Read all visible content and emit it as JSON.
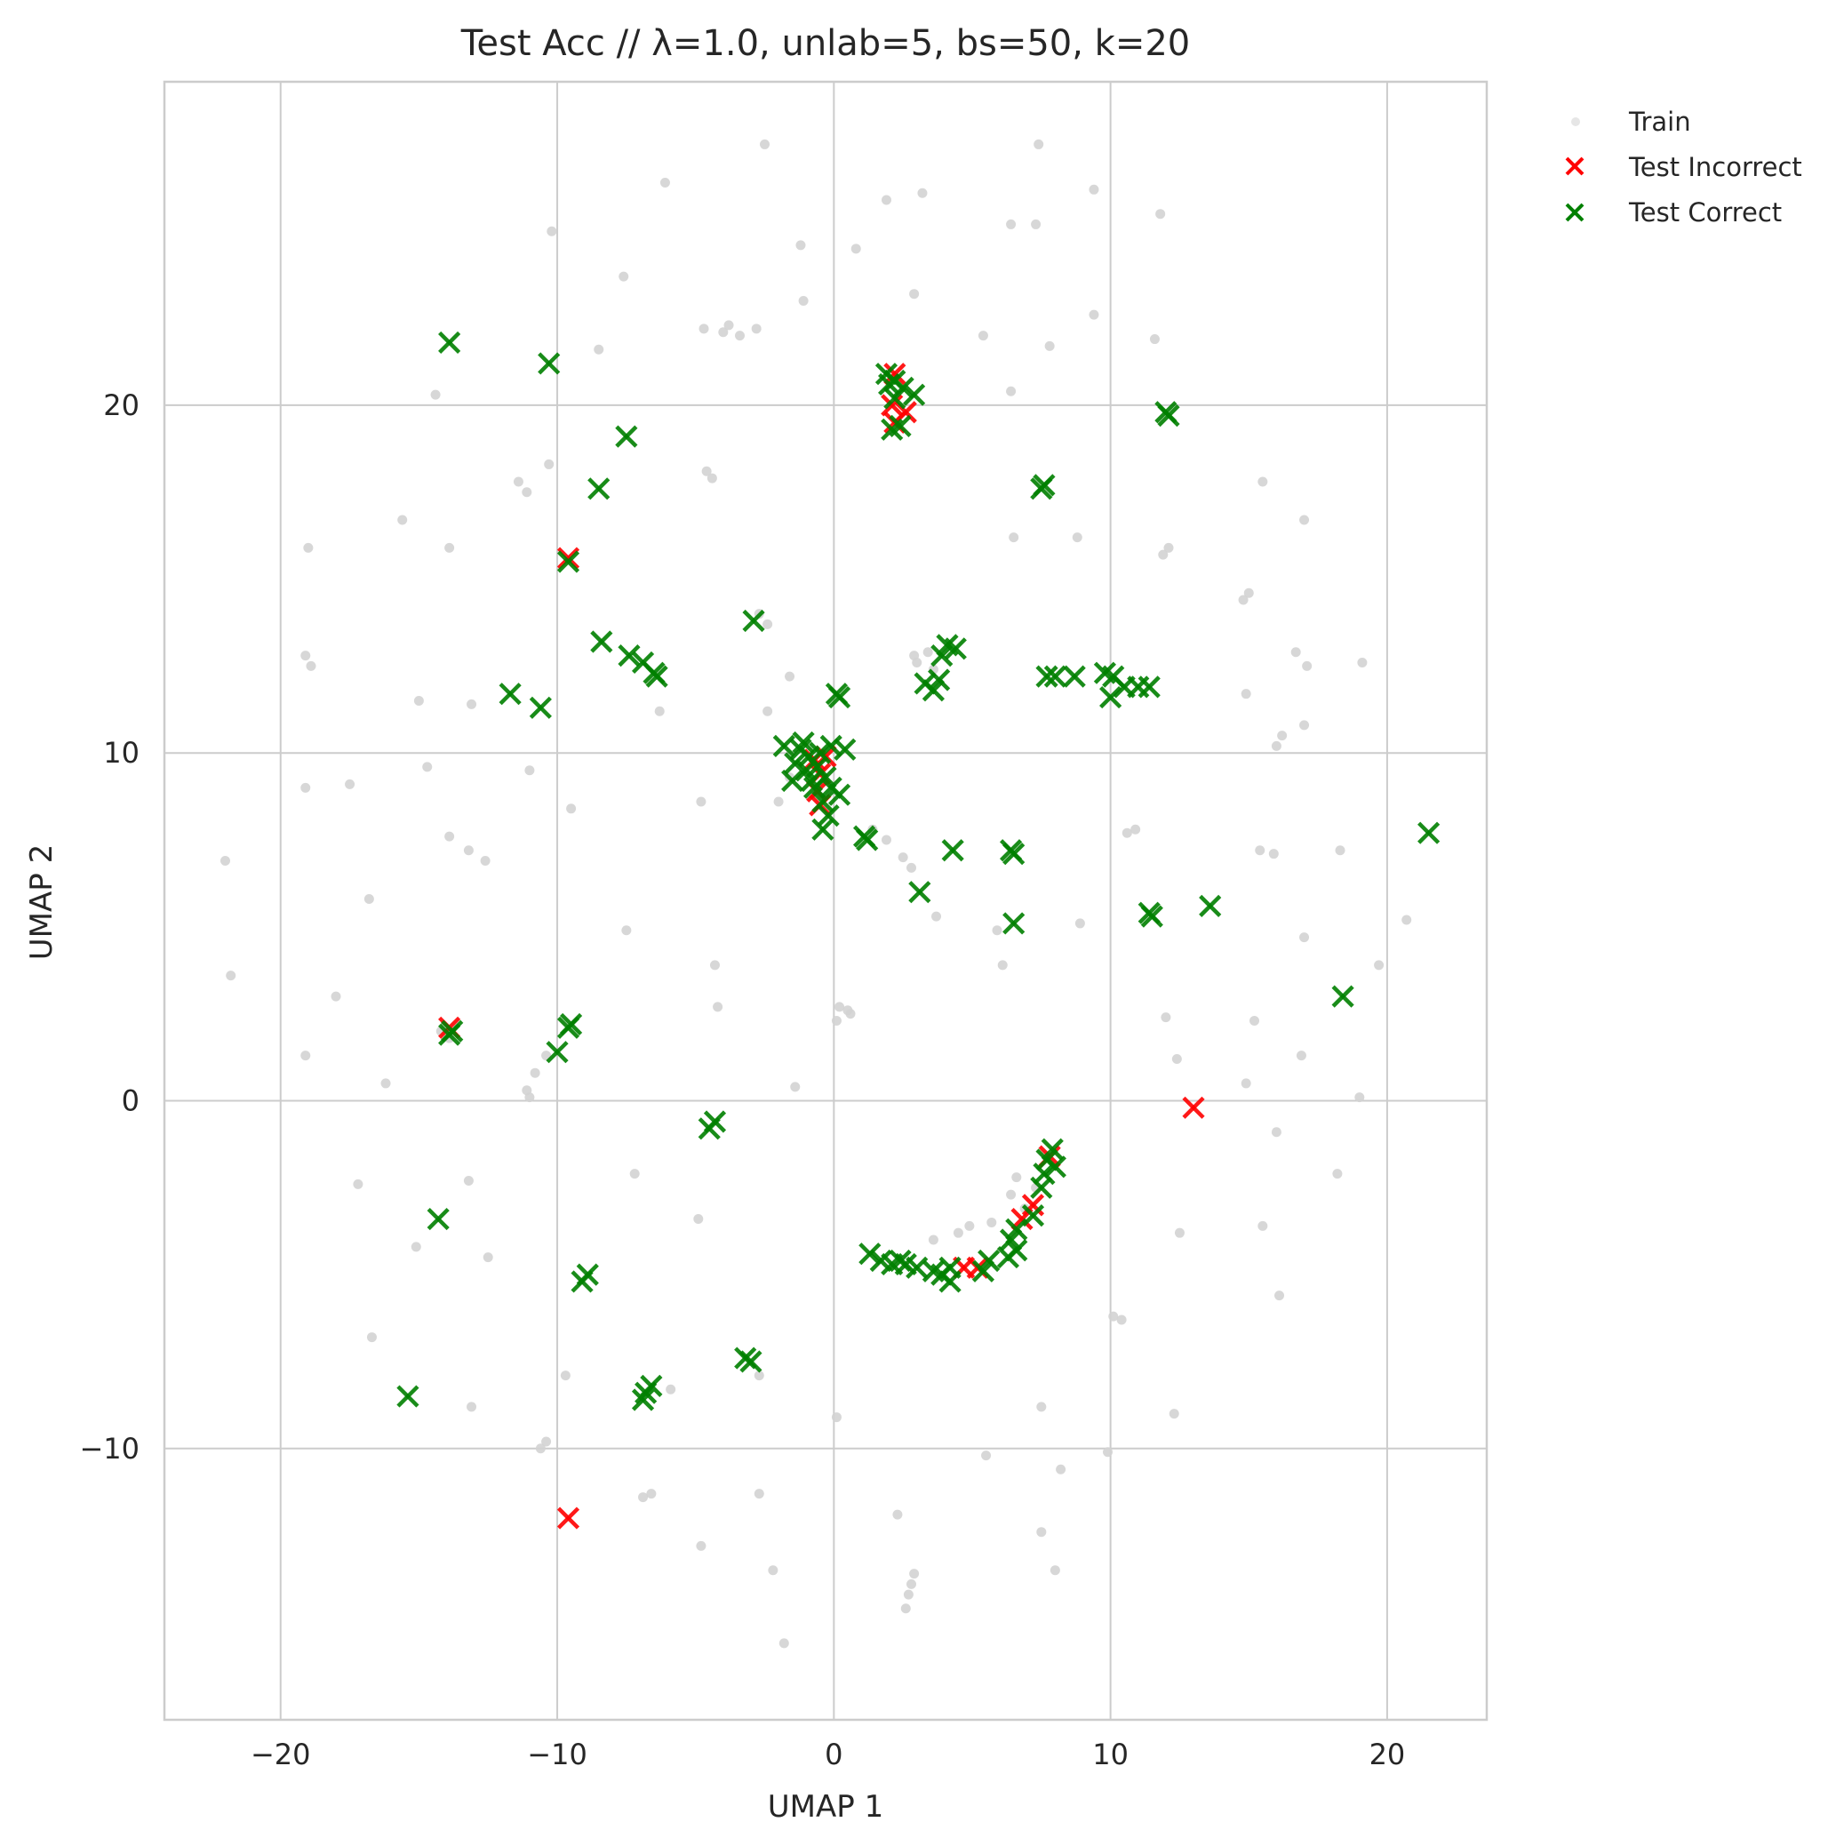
{
  "chart_data": {
    "type": "scatter",
    "title": "Test Acc // λ=1.0, unlab=5, bs=50, k=20",
    "xlabel": "UMAP 1",
    "ylabel": "UMAP 2",
    "xlim": [
      -24.2,
      23.6
    ],
    "ylim": [
      -17.8,
      29.3
    ],
    "xticks": [
      -20,
      -10,
      0,
      10,
      20
    ],
    "yticks": [
      -10,
      0,
      10,
      20
    ],
    "xtick_labels": [
      "−20",
      "−10",
      "0",
      "10",
      "20"
    ],
    "ytick_labels": [
      "−10",
      "0",
      "10",
      "20"
    ],
    "grid": true,
    "legend_position": "outside-top-right",
    "colors": {
      "train": "#d3d3d3",
      "incorrect": "#ff0000",
      "correct": "#008000",
      "grid": "#cccccc",
      "axes": "#cccccc"
    },
    "series": [
      {
        "name": "Train",
        "marker": "dot",
        "points": [
          [
            -2.5,
            27.5
          ],
          [
            -6.1,
            26.4
          ],
          [
            1.9,
            25.9
          ],
          [
            3.2,
            26.1
          ],
          [
            7.4,
            27.5
          ],
          [
            9.4,
            26.2
          ],
          [
            11.8,
            25.5
          ],
          [
            7.3,
            25.2
          ],
          [
            -10.2,
            25.0
          ],
          [
            -1.2,
            24.6
          ],
          [
            0.8,
            24.5
          ],
          [
            6.4,
            25.2
          ],
          [
            -7.6,
            23.7
          ],
          [
            2.9,
            23.2
          ],
          [
            -1.1,
            23.0
          ],
          [
            9.4,
            22.6
          ],
          [
            -4.7,
            22.2
          ],
          [
            -4.0,
            22.1
          ],
          [
            -3.4,
            22.0
          ],
          [
            -2.8,
            22.2
          ],
          [
            -3.8,
            22.3
          ],
          [
            5.4,
            22.0
          ],
          [
            7.8,
            21.7
          ],
          [
            11.6,
            21.9
          ],
          [
            -8.5,
            21.6
          ],
          [
            -14.4,
            20.3
          ],
          [
            6.4,
            20.4
          ],
          [
            -10.3,
            18.3
          ],
          [
            -11.4,
            17.8
          ],
          [
            -11.1,
            17.5
          ],
          [
            -4.6,
            18.1
          ],
          [
            -4.4,
            17.9
          ],
          [
            15.5,
            17.8
          ],
          [
            -15.6,
            16.7
          ],
          [
            17.0,
            16.7
          ],
          [
            -19.0,
            15.9
          ],
          [
            -13.9,
            15.9
          ],
          [
            6.5,
            16.2
          ],
          [
            8.8,
            16.2
          ],
          [
            12.1,
            15.9
          ],
          [
            11.9,
            15.7
          ],
          [
            15.0,
            14.6
          ],
          [
            14.8,
            14.4
          ],
          [
            -2.7,
            14.0
          ],
          [
            -2.4,
            13.7
          ],
          [
            2.9,
            12.8
          ],
          [
            3.4,
            12.9
          ],
          [
            3.0,
            12.6
          ],
          [
            3.6,
            12.4
          ],
          [
            16.7,
            12.9
          ],
          [
            17.1,
            12.5
          ],
          [
            19.1,
            12.6
          ],
          [
            -19.1,
            12.8
          ],
          [
            -18.9,
            12.5
          ],
          [
            -1.6,
            12.2
          ],
          [
            -15.0,
            11.5
          ],
          [
            -13.1,
            11.4
          ],
          [
            -6.3,
            11.2
          ],
          [
            -2.4,
            11.2
          ],
          [
            14.9,
            11.7
          ],
          [
            16.0,
            10.2
          ],
          [
            16.2,
            10.5
          ],
          [
            17.0,
            10.8
          ],
          [
            -0.6,
            9.6
          ],
          [
            -1.6,
            9.3
          ],
          [
            -2.0,
            8.6
          ],
          [
            -4.8,
            8.6
          ],
          [
            -9.5,
            8.4
          ],
          [
            -19.1,
            9.0
          ],
          [
            -17.5,
            9.1
          ],
          [
            -14.7,
            9.6
          ],
          [
            -11.0,
            9.5
          ],
          [
            -13.9,
            7.6
          ],
          [
            -13.2,
            7.2
          ],
          [
            -12.6,
            6.9
          ],
          [
            -22.0,
            6.9
          ],
          [
            1.4,
            7.8
          ],
          [
            1.9,
            7.5
          ],
          [
            2.5,
            7.0
          ],
          [
            2.8,
            6.7
          ],
          [
            10.6,
            7.7
          ],
          [
            10.9,
            7.8
          ],
          [
            15.4,
            7.2
          ],
          [
            15.9,
            7.1
          ],
          [
            18.3,
            7.2
          ],
          [
            -16.8,
            5.8
          ],
          [
            -7.5,
            4.9
          ],
          [
            3.7,
            5.3
          ],
          [
            5.9,
            4.9
          ],
          [
            8.9,
            5.1
          ],
          [
            17.0,
            4.7
          ],
          [
            20.7,
            5.2
          ],
          [
            -21.8,
            3.6
          ],
          [
            6.1,
            3.9
          ],
          [
            -4.3,
            3.9
          ],
          [
            -18.0,
            3.0
          ],
          [
            -4.2,
            2.7
          ],
          [
            0.2,
            2.7
          ],
          [
            0.6,
            2.5
          ],
          [
            0.1,
            2.3
          ],
          [
            0.5,
            2.6
          ],
          [
            19.7,
            3.9
          ],
          [
            12.0,
            2.4
          ],
          [
            15.2,
            2.3
          ],
          [
            -14.2,
            2.0
          ],
          [
            -13.9,
            1.8
          ],
          [
            -10.4,
            1.3
          ],
          [
            -10.8,
            0.8
          ],
          [
            -11.1,
            0.3
          ],
          [
            -11.0,
            0.1
          ],
          [
            -16.2,
            0.5
          ],
          [
            -19.1,
            1.3
          ],
          [
            -1.4,
            0.4
          ],
          [
            12.4,
            1.2
          ],
          [
            14.9,
            0.5
          ],
          [
            16.9,
            1.3
          ],
          [
            19.0,
            0.1
          ],
          [
            -17.2,
            -2.4
          ],
          [
            -13.2,
            -2.3
          ],
          [
            -7.2,
            -2.1
          ],
          [
            6.4,
            -2.7
          ],
          [
            6.9,
            -3.1
          ],
          [
            5.7,
            -3.5
          ],
          [
            4.5,
            -3.8
          ],
          [
            3.6,
            -4.0
          ],
          [
            4.9,
            -3.6
          ],
          [
            12.5,
            -3.8
          ],
          [
            15.5,
            -3.6
          ],
          [
            16.0,
            -0.9
          ],
          [
            18.2,
            -2.1
          ],
          [
            -15.1,
            -4.2
          ],
          [
            -12.5,
            -4.5
          ],
          [
            -4.9,
            -3.4
          ],
          [
            -16.7,
            -6.8
          ],
          [
            -9.7,
            -7.9
          ],
          [
            -5.9,
            -8.3
          ],
          [
            -2.7,
            -7.9
          ],
          [
            -13.1,
            -8.8
          ],
          [
            -10.6,
            -10.0
          ],
          [
            -10.4,
            -9.8
          ],
          [
            0.1,
            -9.1
          ],
          [
            5.5,
            -10.2
          ],
          [
            7.5,
            -8.8
          ],
          [
            8.2,
            -10.6
          ],
          [
            9.9,
            -10.1
          ],
          [
            10.1,
            -6.2
          ],
          [
            10.4,
            -6.3
          ],
          [
            12.3,
            -9.0
          ],
          [
            16.1,
            -5.6
          ],
          [
            -6.9,
            -11.4
          ],
          [
            -6.6,
            -11.3
          ],
          [
            -2.7,
            -11.3
          ],
          [
            -4.8,
            -12.8
          ],
          [
            -2.2,
            -13.5
          ],
          [
            7.5,
            -12.4
          ],
          [
            8.0,
            -13.5
          ],
          [
            2.6,
            -14.6
          ],
          [
            2.7,
            -14.2
          ],
          [
            2.8,
            -13.9
          ],
          [
            2.9,
            -13.6
          ],
          [
            -1.8,
            -15.6
          ],
          [
            2.3,
            -11.9
          ],
          [
            6.6,
            -2.2
          ],
          [
            7.3,
            -2.5
          ]
        ]
      },
      {
        "name": "Test Incorrect",
        "marker": "x",
        "points": [
          [
            2.2,
            20.9
          ],
          [
            2.1,
            20.0
          ],
          [
            2.6,
            19.8
          ],
          [
            2.2,
            19.5
          ],
          [
            -9.6,
            15.6
          ],
          [
            -0.7,
            9.8
          ],
          [
            -0.5,
            9.4
          ],
          [
            -0.3,
            9.9
          ],
          [
            -0.6,
            8.9
          ],
          [
            -0.5,
            8.5
          ],
          [
            -13.9,
            2.1
          ],
          [
            13.0,
            -0.2
          ],
          [
            7.8,
            -1.6
          ],
          [
            7.2,
            -3.0
          ],
          [
            6.8,
            -3.4
          ],
          [
            5.2,
            -4.8
          ],
          [
            4.7,
            -4.8
          ],
          [
            -9.6,
            -12.0
          ]
        ]
      },
      {
        "name": "Test Correct",
        "marker": "x",
        "points": [
          [
            -13.9,
            21.8
          ],
          [
            -10.3,
            21.2
          ],
          [
            -7.5,
            19.1
          ],
          [
            -8.5,
            17.6
          ],
          [
            -9.6,
            15.5
          ],
          [
            1.9,
            20.9
          ],
          [
            2.0,
            20.6
          ],
          [
            2.2,
            20.7
          ],
          [
            2.5,
            20.5
          ],
          [
            2.9,
            20.3
          ],
          [
            2.1,
            19.3
          ],
          [
            2.4,
            19.4
          ],
          [
            2.2,
            20.2
          ],
          [
            12.1,
            19.7
          ],
          [
            12.0,
            19.8
          ],
          [
            7.5,
            17.6
          ],
          [
            7.6,
            17.7
          ],
          [
            -2.9,
            13.8
          ],
          [
            -8.4,
            13.2
          ],
          [
            -7.4,
            12.8
          ],
          [
            -6.9,
            12.6
          ],
          [
            -6.4,
            12.2
          ],
          [
            -6.5,
            12.3
          ],
          [
            -11.7,
            11.7
          ],
          [
            -10.6,
            11.3
          ],
          [
            0.1,
            11.7
          ],
          [
            0.2,
            11.6
          ],
          [
            3.3,
            12.0
          ],
          [
            3.9,
            12.8
          ],
          [
            4.1,
            13.1
          ],
          [
            4.4,
            13.0
          ],
          [
            3.6,
            11.8
          ],
          [
            3.8,
            12.1
          ],
          [
            7.7,
            12.2
          ],
          [
            8.0,
            12.2
          ],
          [
            8.7,
            12.2
          ],
          [
            9.8,
            12.3
          ],
          [
            10.1,
            12.2
          ],
          [
            10.5,
            11.9
          ],
          [
            11.0,
            11.9
          ],
          [
            11.4,
            11.9
          ],
          [
            10.0,
            11.6
          ],
          [
            -1.8,
            10.2
          ],
          [
            -1.2,
            10.1
          ],
          [
            -0.9,
            9.9
          ],
          [
            -1.4,
            9.7
          ],
          [
            -1.0,
            9.5
          ],
          [
            -0.6,
            9.6
          ],
          [
            -0.3,
            9.3
          ],
          [
            -0.7,
            9.0
          ],
          [
            -0.4,
            8.6
          ],
          [
            -0.2,
            8.2
          ],
          [
            -0.4,
            7.8
          ],
          [
            0.2,
            8.8
          ],
          [
            0.4,
            10.1
          ],
          [
            -0.1,
            10.2
          ],
          [
            -1.5,
            9.2
          ],
          [
            -1.1,
            10.3
          ],
          [
            -0.5,
            10.0
          ],
          [
            -0.8,
            9.2
          ],
          [
            -0.1,
            9.0
          ],
          [
            1.1,
            7.6
          ],
          [
            1.2,
            7.5
          ],
          [
            4.3,
            7.2
          ],
          [
            6.4,
            7.2
          ],
          [
            6.5,
            7.1
          ],
          [
            3.1,
            6.0
          ],
          [
            6.5,
            5.1
          ],
          [
            11.4,
            5.4
          ],
          [
            11.5,
            5.3
          ],
          [
            13.6,
            5.6
          ],
          [
            21.5,
            7.7
          ],
          [
            18.4,
            3.0
          ],
          [
            -13.9,
            1.9
          ],
          [
            -13.8,
            2.0
          ],
          [
            -9.5,
            2.2
          ],
          [
            -10.0,
            1.4
          ],
          [
            -9.6,
            2.1
          ],
          [
            -4.3,
            -0.6
          ],
          [
            -4.5,
            -0.8
          ],
          [
            7.9,
            -1.4
          ],
          [
            7.7,
            -1.7
          ],
          [
            8.0,
            -1.9
          ],
          [
            7.6,
            -2.1
          ],
          [
            7.5,
            -2.5
          ],
          [
            7.2,
            -3.3
          ],
          [
            6.6,
            -3.7
          ],
          [
            6.4,
            -4.0
          ],
          [
            6.6,
            -4.3
          ],
          [
            6.3,
            -4.5
          ],
          [
            5.6,
            -4.6
          ],
          [
            5.4,
            -4.9
          ],
          [
            4.2,
            -4.8
          ],
          [
            3.6,
            -4.9
          ],
          [
            3.9,
            -5.0
          ],
          [
            4.2,
            -5.2
          ],
          [
            3.0,
            -4.8
          ],
          [
            2.4,
            -4.6
          ],
          [
            2.1,
            -4.7
          ],
          [
            1.7,
            -4.6
          ],
          [
            1.3,
            -4.4
          ],
          [
            2.6,
            -4.7
          ],
          [
            -14.3,
            -3.4
          ],
          [
            -9.1,
            -5.2
          ],
          [
            -8.9,
            -5.0
          ],
          [
            -15.4,
            -8.5
          ],
          [
            -6.8,
            -8.4
          ],
          [
            -6.9,
            -8.6
          ],
          [
            -6.6,
            -8.2
          ],
          [
            -3.2,
            -7.4
          ],
          [
            -3.0,
            -7.5
          ]
        ]
      }
    ]
  }
}
